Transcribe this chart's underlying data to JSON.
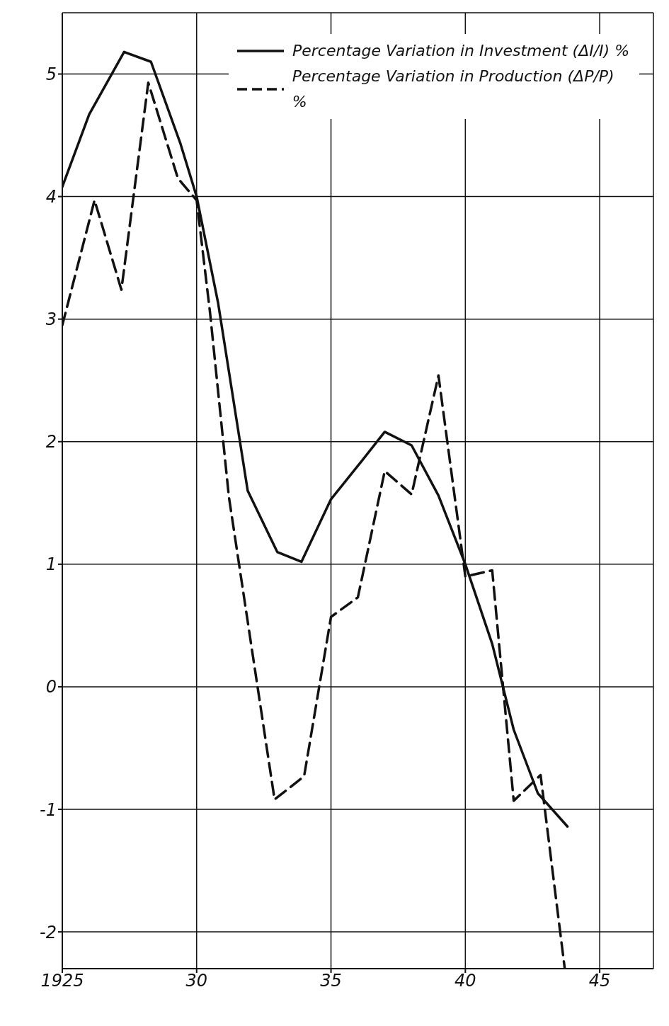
{
  "chart_data": {
    "type": "line",
    "xlim": [
      1925,
      1947
    ],
    "ylim": [
      -2.3,
      5.5
    ],
    "xticks": [
      {
        "value": 1925,
        "label": "1925"
      },
      {
        "value": 1930,
        "label": "30"
      },
      {
        "value": 1935,
        "label": "35"
      },
      {
        "value": 1940,
        "label": "40"
      },
      {
        "value": 1945,
        "label": "45"
      }
    ],
    "yticks": [
      -2,
      -1,
      0,
      1,
      2,
      3,
      4,
      5
    ],
    "grid": true,
    "legend": "top right",
    "marker": "none",
    "series": [
      {
        "name": "Percentage Variation in Investment (ΔI/I) %",
        "color": "#111111",
        "line_style": "solid",
        "x": [
          1925,
          1926,
          1927.3,
          1928.3,
          1929.4,
          1930,
          1930.8,
          1931.9,
          1933,
          1933.9,
          1935,
          1936.1,
          1937,
          1938,
          1939,
          1940,
          1941,
          1941.8,
          1942.7,
          1943.8
        ],
        "values": [
          4.08,
          4.67,
          5.18,
          5.1,
          4.43,
          4.0,
          3.13,
          1.6,
          1.1,
          1.02,
          1.53,
          1.83,
          2.08,
          1.97,
          1.56,
          1.0,
          0.35,
          -0.35,
          -0.87,
          -1.14
        ]
      },
      {
        "name": "Percentage Variation in Production (ΔP/P) %",
        "color": "#111111",
        "line_style": "dashed",
        "x": [
          1925,
          1926.2,
          1927.2,
          1928.2,
          1929.3,
          1930,
          1930.5,
          1931.2,
          1932.9,
          1934,
          1935,
          1936,
          1937,
          1938,
          1939,
          1940,
          1941,
          1941.8,
          1942.8,
          1943.7
        ],
        "values": [
          2.95,
          3.97,
          3.24,
          4.93,
          4.15,
          3.97,
          3.05,
          1.55,
          -0.92,
          -0.73,
          0.57,
          0.73,
          1.76,
          1.57,
          2.54,
          0.9,
          0.95,
          -0.93,
          -0.72,
          -2.3
        ]
      }
    ]
  }
}
